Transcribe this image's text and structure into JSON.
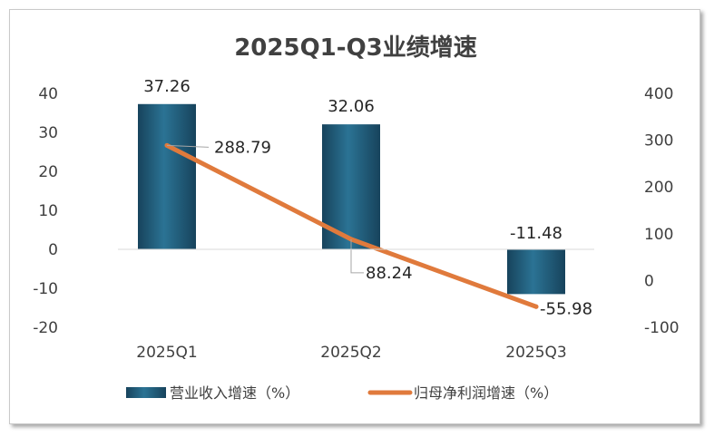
{
  "chart_data": {
    "type": "bar+line",
    "title": "2025Q1-Q3业绩增速",
    "categories": [
      "2025Q1",
      "2025Q2",
      "2025Q3"
    ],
    "series": [
      {
        "name": "营业收入增速（%）",
        "type": "bar",
        "axis": "left",
        "values": [
          37.26,
          32.06,
          -11.48
        ],
        "color": "#1f5a7a"
      },
      {
        "name": "归母净利润增速（%）",
        "type": "line",
        "axis": "right",
        "values": [
          288.79,
          88.24,
          -55.98
        ],
        "color": "#e07a3c"
      }
    ],
    "data_labels": {
      "bar": [
        "37.26",
        "32.06",
        "-11.48"
      ],
      "line": [
        "288.79",
        "88.24",
        "-55.98"
      ]
    },
    "y_left": {
      "ylim": [
        -20,
        40
      ],
      "ticks": [
        "40",
        "30",
        "20",
        "10",
        "0",
        "-10",
        "-20"
      ]
    },
    "y_right": {
      "ylim": [
        -100,
        400
      ],
      "ticks": [
        "400",
        "300",
        "200",
        "100",
        "0",
        "-100"
      ]
    },
    "grid": false,
    "legend": "bottom"
  }
}
